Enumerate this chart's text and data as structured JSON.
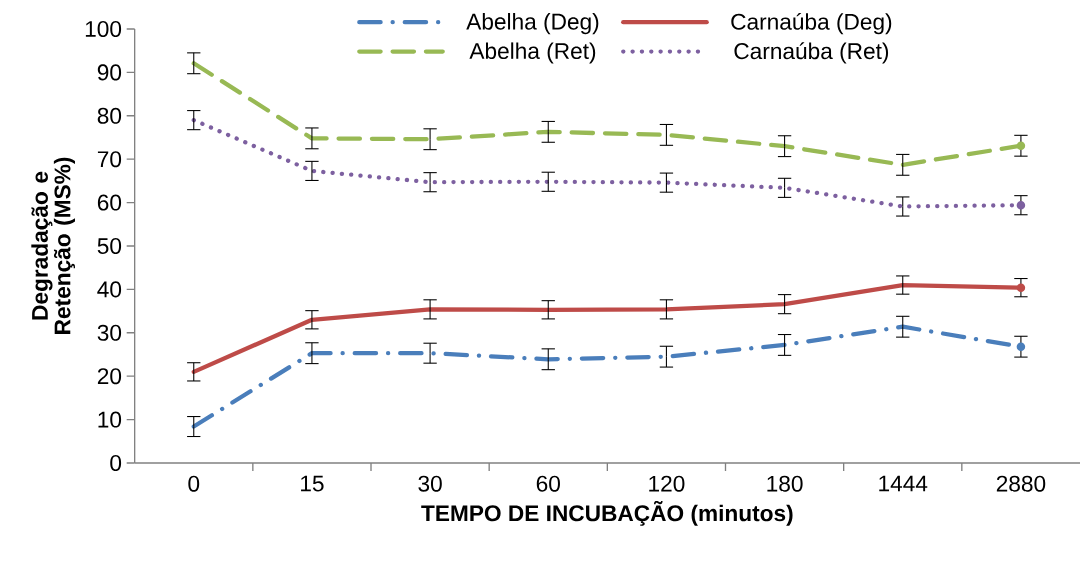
{
  "chart_data": {
    "type": "line",
    "xlabel": "TEMPO DE INCUBAÇÃO (minutos)",
    "ylabel": "Degradação e Retenção (MS%)",
    "categories": [
      "0",
      "15",
      "30",
      "60",
      "120",
      "180",
      "1444",
      "2880"
    ],
    "ylim": [
      0,
      100
    ],
    "yticks": [
      0,
      10,
      20,
      30,
      40,
      50,
      60,
      70,
      80,
      90,
      100
    ],
    "grid": false,
    "legend": "top",
    "marker": "none",
    "series": [
      {
        "name": "Abelha (Deg)",
        "color": "#4a7ebb",
        "line_style": "dashdot",
        "values": [
          8.4,
          25.3,
          25.3,
          23.9,
          24.5,
          27.2,
          31.4,
          26.8
        ],
        "errors": [
          2.3,
          2.4,
          2.3,
          2.4,
          2.4,
          2.4,
          2.4,
          2.4
        ]
      },
      {
        "name": "Carnaúba (Deg)",
        "color": "#be4b48",
        "line_style": "solid",
        "values": [
          21.0,
          33.0,
          35.4,
          35.3,
          35.4,
          36.6,
          41.0,
          40.4
        ],
        "errors": [
          2.1,
          2.1,
          2.2,
          2.1,
          2.2,
          2.2,
          2.1,
          2.1
        ]
      },
      {
        "name": "Abelha (Ret)",
        "color": "#98b954",
        "line_style": "dashed",
        "values": [
          92.1,
          74.8,
          74.6,
          76.3,
          75.6,
          73.0,
          68.7,
          73.1
        ],
        "errors": [
          2.4,
          2.4,
          2.4,
          2.4,
          2.4,
          2.4,
          2.4,
          2.4
        ]
      },
      {
        "name": "Carnaúba (Ret)",
        "color": "#7d60a0",
        "line_style": "dotted",
        "values": [
          79.0,
          67.3,
          64.7,
          64.8,
          64.6,
          63.4,
          59.1,
          59.4
        ],
        "errors": [
          2.2,
          2.2,
          2.2,
          2.2,
          2.2,
          2.2,
          2.2,
          2.2
        ]
      }
    ]
  }
}
